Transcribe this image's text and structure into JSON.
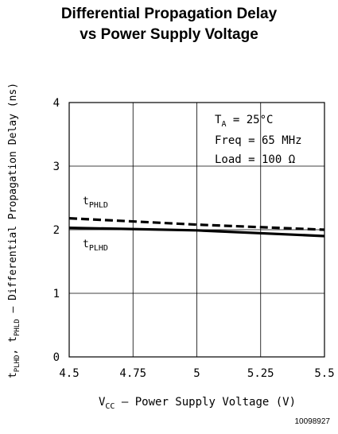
{
  "chart_data": {
    "type": "line",
    "title_line1": "Differential Propagation Delay",
    "title_line2": "vs Power Supply Voltage",
    "xlabel": {
      "prefix": "V",
      "sub": "CC",
      "rest": " – Power Supply Voltage (V)"
    },
    "ylabel": {
      "p1": "t",
      "s1": "PLHD",
      "p2": ", t",
      "s2": "PHLD",
      "rest": " – Differential Propagation Delay (ns)"
    },
    "xlim": [
      4.5,
      5.5
    ],
    "ylim": [
      0,
      4
    ],
    "x_ticks": [
      4.5,
      4.75,
      5,
      5.25,
      5.5
    ],
    "x_tick_labels": [
      "4.5",
      "4.75",
      "5",
      "5.25",
      "5.5"
    ],
    "y_ticks": [
      0,
      1,
      2,
      3,
      4
    ],
    "y_tick_labels": [
      "0",
      "1",
      "2",
      "3",
      "4"
    ],
    "grid": true,
    "series": [
      {
        "name_p": "t",
        "name_s": "PHLD",
        "style": "dashed",
        "x": [
          4.5,
          5.0,
          5.5
        ],
        "values": [
          2.18,
          2.08,
          2.0
        ]
      },
      {
        "name_p": "t",
        "name_s": "PLHD",
        "style": "solid",
        "x": [
          4.5,
          5.0,
          5.5
        ],
        "values": [
          2.03,
          1.99,
          1.9
        ]
      }
    ],
    "annotation": {
      "line1_p": "T",
      "line1_s": "A",
      "line1_rest": " = 25°C",
      "line2": "Freq = 65 MHz",
      "line3": "Load = 100 Ω"
    },
    "figure_id": "10098927"
  }
}
